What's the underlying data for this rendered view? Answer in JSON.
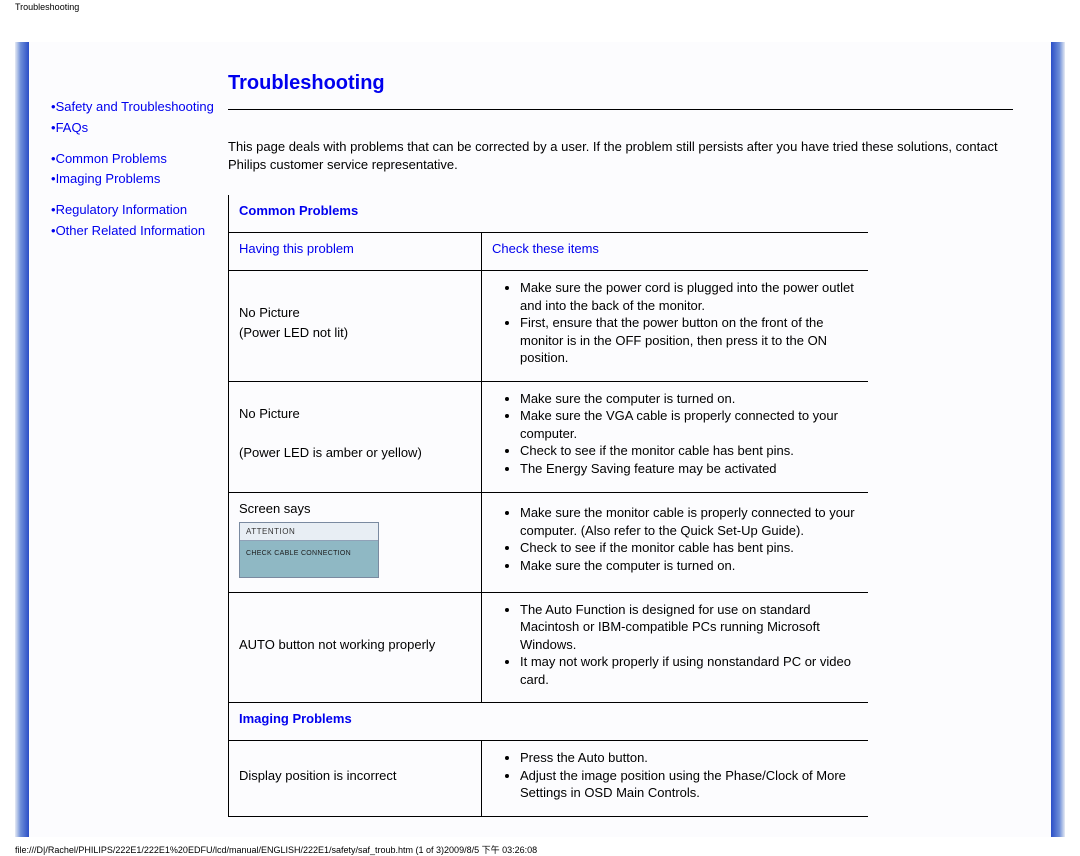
{
  "meta": {
    "tiny_header": "Troubleshooting",
    "footer_path": "file:///D|/Rachel/PHILIPS/222E1/222E1%20EDFU/lcd/manual/ENGLISH/222E1/safety/saf_troub.htm (1 of 3)2009/8/5 下午 03:26:08"
  },
  "sidebar": {
    "items": [
      {
        "label": "Safety and Troubleshooting"
      },
      {
        "label": "FAQs"
      },
      {
        "label": "Common Problems"
      },
      {
        "label": "Imaging Problems"
      },
      {
        "label": "Regulatory Information"
      },
      {
        "label": "Other Related Information"
      }
    ]
  },
  "main": {
    "title": "Troubleshooting",
    "intro": "This page deals with problems that can be corrected by a user. If the problem still persists after you have tried these solutions, contact Philips customer service representative.",
    "section_common": "Common Problems",
    "col_problem": "Having this problem",
    "col_check": "Check these items",
    "section_imaging": "Imaging Problems",
    "rows": [
      {
        "problem_l1": "No Picture",
        "problem_l2": "(Power LED not lit)",
        "checks": [
          "Make sure the power cord is plugged into the power outlet and into the back of the monitor.",
          "First, ensure that the power button on the front of the monitor is in the OFF position, then press it to the ON position."
        ]
      },
      {
        "problem_l1": "No Picture",
        "problem_l2": "(Power LED is amber or yellow)",
        "checks": [
          "Make sure the computer is turned on.",
          "Make sure the VGA cable is properly connected to your computer.",
          "Check to see if the monitor cable has bent pins.",
          "The Energy Saving feature may be activated"
        ]
      },
      {
        "problem_l1": "Screen says",
        "screenbox_title": "ATTENTION",
        "screenbox_body": "CHECK CABLE CONNECTION",
        "checks": [
          "Make sure the monitor cable is properly connected to your computer. (Also refer to the Quick Set-Up Guide).",
          "Check to see if the monitor cable has bent pins.",
          "Make sure the computer is turned on."
        ]
      },
      {
        "problem_l1": "AUTO button not working properly",
        "checks": [
          "The Auto Function is designed for use on standard Macintosh or IBM-compatible PCs running Microsoft Windows.",
          "It may not work properly if using nonstandard PC or video card."
        ]
      },
      {
        "problem_l1": "Display position is incorrect",
        "checks": [
          "Press the Auto button.",
          "Adjust the image position using the Phase/Clock of More Settings in OSD Main Controls."
        ]
      }
    ]
  }
}
